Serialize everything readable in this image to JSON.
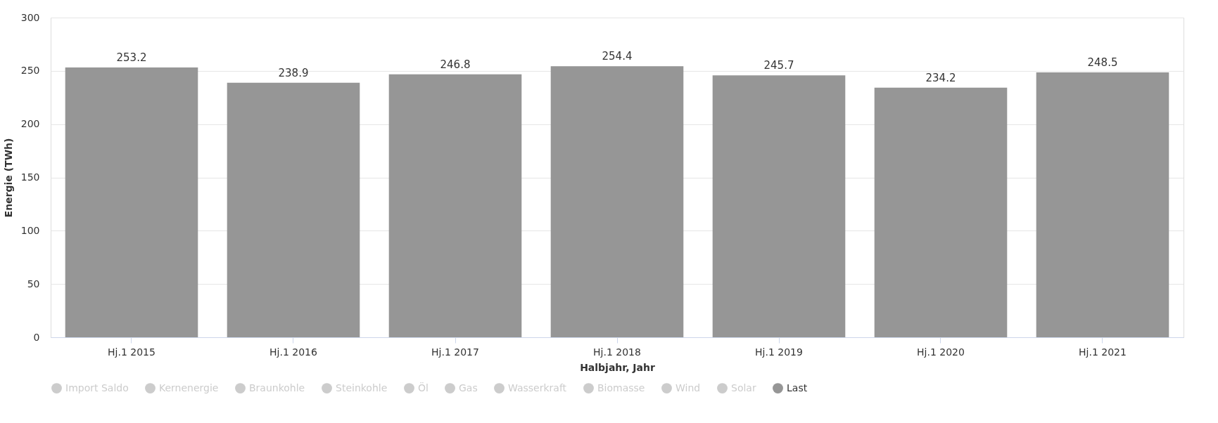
{
  "chart_data": {
    "type": "bar",
    "xlabel": "Halbjahr, Jahr",
    "ylabel": "Energie (TWh)",
    "categories": [
      "Hj.1 2015",
      "Hj.1 2016",
      "Hj.1 2017",
      "Hj.1 2018",
      "Hj.1 2019",
      "Hj.1 2020",
      "Hj.1 2021"
    ],
    "series": [
      {
        "name": "Import Saldo",
        "color": "#cccccc",
        "values": [
          null,
          null,
          null,
          null,
          null,
          null,
          null
        ]
      },
      {
        "name": "Kernenergie",
        "color": "#cccccc",
        "values": [
          null,
          null,
          null,
          null,
          null,
          null,
          null
        ]
      },
      {
        "name": "Braunkohle",
        "color": "#cccccc",
        "values": [
          null,
          null,
          null,
          null,
          null,
          null,
          null
        ]
      },
      {
        "name": "Steinkohle",
        "color": "#cccccc",
        "values": [
          null,
          null,
          null,
          null,
          null,
          null,
          null
        ]
      },
      {
        "name": "Öl",
        "color": "#cccccc",
        "values": [
          null,
          null,
          null,
          null,
          null,
          null,
          null
        ]
      },
      {
        "name": "Gas",
        "color": "#cccccc",
        "values": [
          null,
          null,
          null,
          null,
          null,
          null,
          null
        ]
      },
      {
        "name": "Wasserkraft",
        "color": "#cccccc",
        "values": [
          null,
          null,
          null,
          null,
          null,
          null,
          null
        ]
      },
      {
        "name": "Biomasse",
        "color": "#cccccc",
        "values": [
          null,
          null,
          null,
          null,
          null,
          null,
          null
        ]
      },
      {
        "name": "Wind",
        "color": "#cccccc",
        "values": [
          null,
          null,
          null,
          null,
          null,
          null,
          null
        ]
      },
      {
        "name": "Solar",
        "color": "#cccccc",
        "values": [
          null,
          null,
          null,
          null,
          null,
          null,
          null
        ]
      },
      {
        "name": "Last",
        "color": "#969696",
        "values": [
          253.2,
          238.9,
          246.8,
          254.4,
          245.7,
          234.2,
          248.5
        ]
      }
    ],
    "ylim": [
      0,
      300
    ],
    "yticks": [
      0,
      50,
      100,
      150,
      200,
      250,
      300
    ],
    "grid": "y",
    "legend": "bottom",
    "data_labels": true
  }
}
